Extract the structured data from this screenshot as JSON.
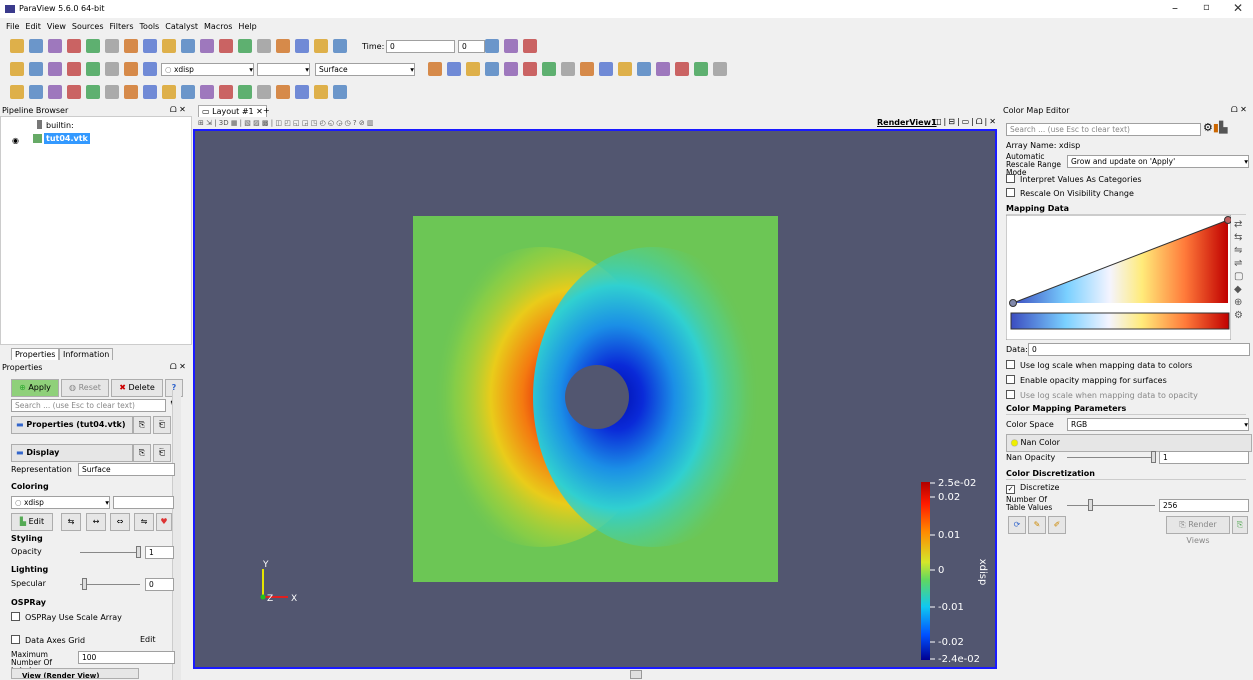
{
  "window": {
    "title": "ParaView 5.6.0 64-bit"
  },
  "menu": [
    "File",
    "Edit",
    "View",
    "Sources",
    "Filters",
    "Tools",
    "Catalyst",
    "Macros",
    "Help"
  ],
  "toolbar": {
    "time_label": "Time:",
    "time_value": "0",
    "time_index": "0",
    "array": "xdisp",
    "representation": "Surface"
  },
  "pipeline": {
    "title": "Pipeline Browser",
    "items": [
      "builtin:",
      "tut04.vtk"
    ]
  },
  "properties": {
    "tabs": [
      "Properties",
      "Information"
    ],
    "title": "Properties",
    "buttons": [
      "Apply",
      "Reset",
      "Delete",
      "?"
    ],
    "search": "Search ... (use Esc to clear text)",
    "section_properties": "Properties (tut04.vtk)",
    "section_display": "Display (UnstructuredG",
    "representation_label": "Representation",
    "representation_value": "Surface",
    "coloring": "Coloring",
    "coloring_array": "xdisp",
    "edit": "Edit",
    "styling": "Styling",
    "opacity_label": "Opacity",
    "opacity_value": "1",
    "lighting": "Lighting",
    "specular_label": "Specular",
    "specular_value": "0",
    "ospray": "OSPRay",
    "ospray_scale": "OSPRay Use Scale Array",
    "data_axes_grid": "Data Axes Grid",
    "data_axes_edit": "Edit",
    "max_labels_label": "Maximum Number Of Labels",
    "max_labels_value": "100",
    "section_view": "View (Render View)"
  },
  "layout": {
    "tab": "Layout #1",
    "add": "+",
    "view_name": "RenderView1",
    "mode": "3D"
  },
  "render": {
    "legend_title": "xdisp",
    "legend_labels": [
      "2.5e-02",
      "0.02",
      "0.01",
      "0",
      "-0.01",
      "-0.02",
      "-2.4e-02"
    ],
    "axes": [
      "Y",
      "Z",
      "X"
    ]
  },
  "color_map_editor": {
    "title": "Color Map Editor",
    "search": "Search ... (use Esc to clear text)",
    "array_name": "Array Name: xdisp",
    "rescale_label": "Automatic Rescale Range Mode",
    "rescale_value": "Grow and update on 'Apply'",
    "interpret_categories": "Interpret Values As Categories",
    "rescale_visibility": "Rescale On Visibility Change",
    "mapping_data": "Mapping Data",
    "data_label": "Data:",
    "data_value": "0",
    "log_colors": "Use log scale when mapping data to colors",
    "opacity_mapping": "Enable opacity mapping for surfaces",
    "log_opacity": "Use log scale when mapping data to opacity",
    "color_mapping_parameters": "Color Mapping Parameters",
    "color_space_label": "Color Space",
    "color_space_value": "RGB",
    "nan_color": "Nan Color",
    "nan_opacity_label": "Nan Opacity",
    "nan_opacity_value": "1",
    "color_discretization": "Color Discretization",
    "discretize": "Discretize",
    "table_values_label": "Number Of Table Values",
    "table_values_value": "256",
    "render_views": "Render Views"
  }
}
